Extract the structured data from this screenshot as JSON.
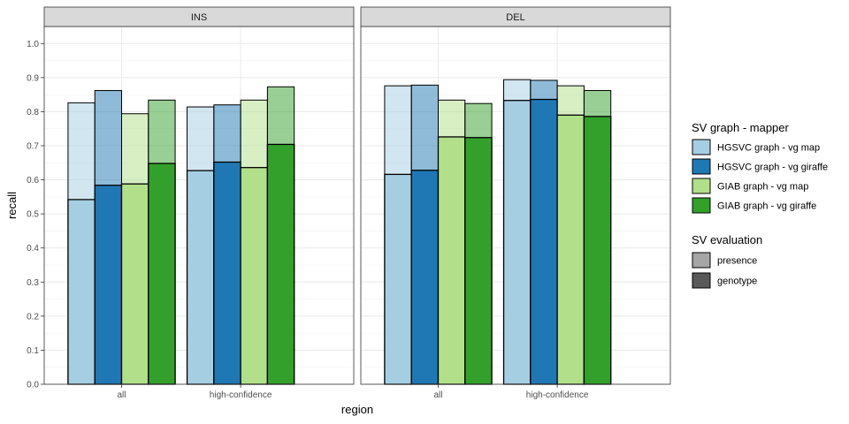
{
  "chart_data": {
    "type": "bar",
    "xlabel": "region",
    "ylabel": "recall",
    "ylim": [
      0,
      1.05
    ],
    "yticks": [
      0.0,
      0.1,
      0.2,
      0.3,
      0.4,
      0.5,
      0.6,
      0.7,
      0.8,
      0.9,
      1.0
    ],
    "ytick_labels": [
      "0.0",
      "0.1",
      "0.2",
      "0.3",
      "0.4",
      "0.5",
      "0.6",
      "0.7",
      "0.8",
      "0.9",
      "1.0"
    ],
    "grid": true,
    "categories": [
      "all",
      "high-confidence"
    ],
    "panels": [
      {
        "label": "INS",
        "series": [
          {
            "name": "HGSVC graph - vg map",
            "presence": [
              0.826,
              0.814
            ],
            "genotype": [
              0.542,
              0.627
            ]
          },
          {
            "name": "HGSVC graph - vg giraffe",
            "presence": [
              0.862,
              0.82
            ],
            "genotype": [
              0.584,
              0.652
            ]
          },
          {
            "name": "GIAB graph - vg map",
            "presence": [
              0.794,
              0.834
            ],
            "genotype": [
              0.588,
              0.636
            ]
          },
          {
            "name": "GIAB graph - vg giraffe",
            "presence": [
              0.834,
              0.873
            ],
            "genotype": [
              0.648,
              0.704
            ]
          }
        ]
      },
      {
        "label": "DEL",
        "series": [
          {
            "name": "HGSVC graph - vg map",
            "presence": [
              0.876,
              0.894
            ],
            "genotype": [
              0.616,
              0.833
            ]
          },
          {
            "name": "HGSVC graph - vg giraffe",
            "presence": [
              0.878,
              0.892
            ],
            "genotype": [
              0.628,
              0.836
            ]
          },
          {
            "name": "GIAB graph - vg map",
            "presence": [
              0.834,
              0.876
            ],
            "genotype": [
              0.726,
              0.79
            ]
          },
          {
            "name": "GIAB graph - vg giraffe",
            "presence": [
              0.824,
              0.862
            ],
            "genotype": [
              0.724,
              0.786
            ]
          }
        ]
      }
    ],
    "series_colors": [
      "#a6cee3",
      "#1f78b4",
      "#b2df8a",
      "#33a02c"
    ],
    "evaluation_alpha": {
      "presence": 0.5,
      "genotype": 1.0
    },
    "legend": {
      "placement": "right",
      "mapper_title": "SV graph - mapper",
      "mapper_items": [
        "HGSVC graph - vg map",
        "HGSVC graph - vg giraffe",
        "GIAB graph - vg map",
        "GIAB graph - vg giraffe"
      ],
      "evaluation_title": "SV evaluation",
      "evaluation_items": [
        "presence",
        "genotype"
      ],
      "evaluation_colors": [
        "#a6a6a6",
        "#595959"
      ]
    }
  }
}
